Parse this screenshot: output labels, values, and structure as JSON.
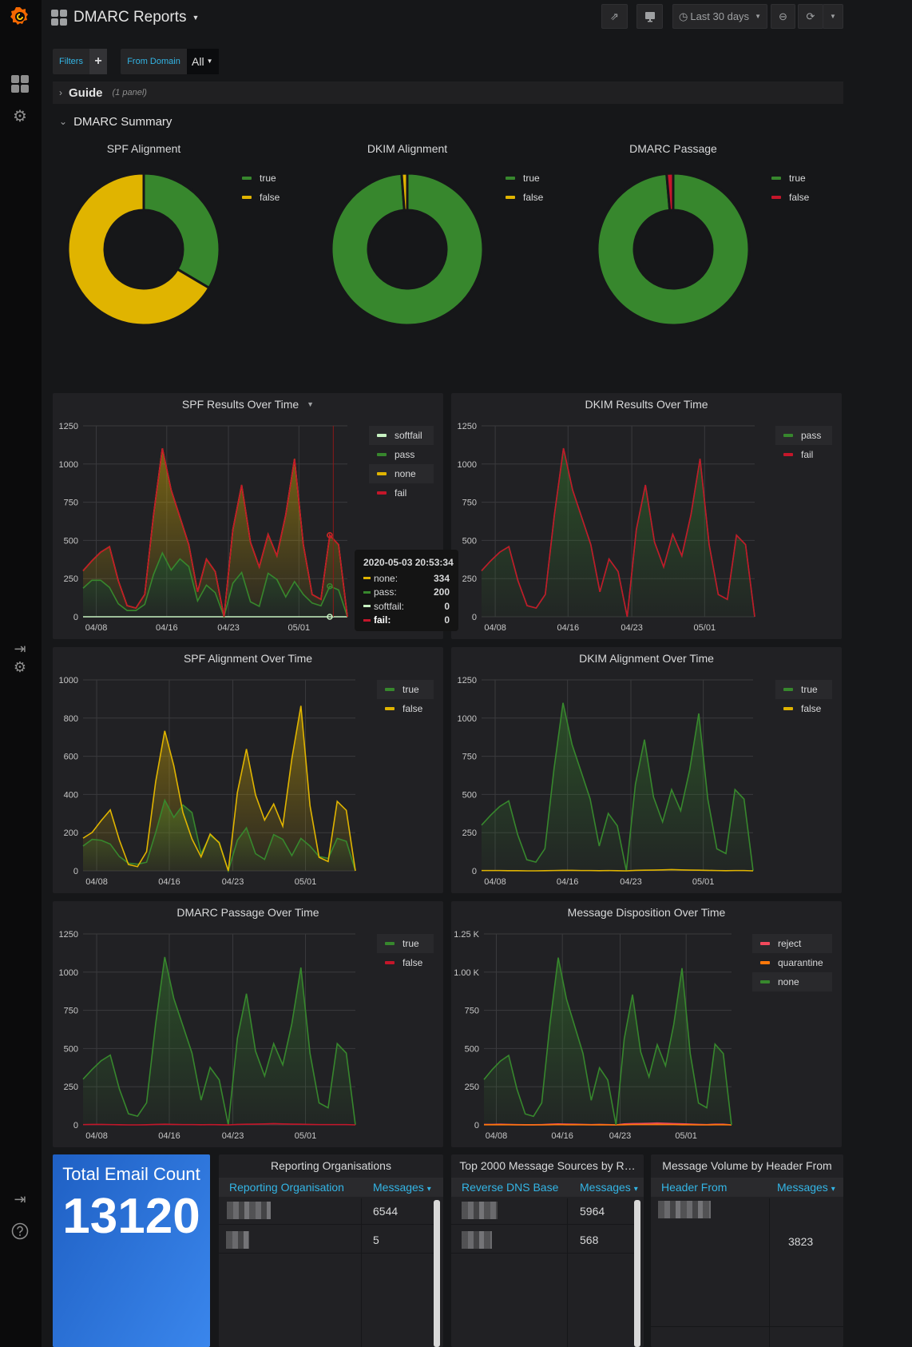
{
  "header": {
    "title": "DMARC Reports",
    "time_range": "Last 30 days"
  },
  "filters": {
    "filters_label": "Filters",
    "add_label": "+",
    "variable_label": "From Domain",
    "variable_value": "All"
  },
  "rows": {
    "guide": {
      "title": "Guide",
      "count": "(1 panel)"
    },
    "summary": {
      "title": "DMARC Summary"
    }
  },
  "colors": {
    "green": "#37872D",
    "yellow": "#E0B400",
    "red": "#C4162A",
    "softfail": "#C8F2C2",
    "orange": "#FF780A",
    "reject": "#F2495C",
    "link": "#33B5E5",
    "stat_bg": "#1F60C4"
  },
  "chart_data": [
    {
      "type": "pie",
      "title": "SPF Alignment",
      "legend": [
        {
          "label": "true",
          "color": "#37872D"
        },
        {
          "label": "false",
          "color": "#E0B400"
        }
      ],
      "values": [
        33.5,
        66.5
      ]
    },
    {
      "type": "pie",
      "title": "DKIM Alignment",
      "legend": [
        {
          "label": "true",
          "color": "#37872D"
        },
        {
          "label": "false",
          "color": "#E0B400"
        }
      ],
      "values": [
        98.8,
        1.2
      ]
    },
    {
      "type": "pie",
      "title": "DMARC Passage",
      "legend": [
        {
          "label": "true",
          "color": "#37872D"
        },
        {
          "label": "false",
          "color": "#C4162A"
        }
      ],
      "values": [
        98.6,
        1.4
      ]
    },
    {
      "type": "area",
      "title": "SPF Results Over Time",
      "stacked": true,
      "ylim": [
        0,
        1250
      ],
      "yticks": [
        "0",
        "250",
        "500",
        "750",
        "1000",
        "1250"
      ],
      "xticks": [
        "04/08",
        "04/16",
        "04/23",
        "05/01"
      ],
      "x": [
        "04/05",
        "04/06",
        "04/07",
        "04/08",
        "04/09",
        "04/10",
        "04/11",
        "04/12",
        "04/13",
        "04/14",
        "04/15",
        "04/16",
        "04/17",
        "04/18",
        "04/19",
        "04/20",
        "04/21",
        "04/22",
        "04/23",
        "04/24",
        "04/25",
        "04/26",
        "04/27",
        "04/28",
        "04/29",
        "04/30",
        "05/01",
        "05/02",
        "05/03",
        "05/04",
        "05/05"
      ],
      "series": [
        {
          "name": "softfail",
          "color": "#C8F2C2",
          "values": [
            0,
            0,
            0,
            0,
            0,
            0,
            0,
            0,
            0,
            0,
            0,
            0,
            0,
            0,
            0,
            0,
            0,
            0,
            0,
            0,
            0,
            0,
            0,
            0,
            0,
            0,
            0,
            0,
            0,
            0,
            0
          ]
        },
        {
          "name": "pass",
          "color": "#37872D",
          "values": [
            187,
            239,
            239,
            192,
            85,
            41,
            41,
            81,
            277,
            418,
            306,
            379,
            329,
            104,
            207,
            158,
            0,
            220,
            290,
            98,
            68,
            285,
            244,
            130,
            231,
            146,
            90,
            72,
            200,
            176,
            0
          ]
        },
        {
          "name": "none",
          "color": "#E0B400",
          "values": [
            114,
            127,
            184,
            267,
            151,
            32,
            16,
            65,
            390,
            685,
            524,
            272,
            143,
            59,
            171,
            138,
            0,
            350,
            573,
            390,
            258,
            255,
            155,
            537,
            803,
            326,
            56,
            42,
            334,
            296,
            0
          ]
        },
        {
          "name": "fail",
          "color": "#C4162A",
          "values": [
            0,
            0,
            0,
            0,
            0,
            0,
            0,
            0,
            0,
            0,
            0,
            0,
            0,
            0,
            0,
            0,
            0,
            0,
            0,
            0,
            0,
            0,
            0,
            0,
            0,
            0,
            0,
            0,
            0,
            0,
            0
          ]
        }
      ]
    },
    {
      "type": "area",
      "title": "DKIM Results Over Time",
      "stacked": true,
      "ylim": [
        0,
        1250
      ],
      "yticks": [
        "0",
        "250",
        "500",
        "750",
        "1000",
        "1250"
      ],
      "xticks": [
        "04/08",
        "04/16",
        "04/23",
        "05/01"
      ],
      "x": [
        "04/05",
        "04/06",
        "04/07",
        "04/08",
        "04/09",
        "04/10",
        "04/11",
        "04/12",
        "04/13",
        "04/14",
        "04/15",
        "04/16",
        "04/17",
        "04/18",
        "04/19",
        "04/20",
        "04/21",
        "04/22",
        "04/23",
        "04/24",
        "04/25",
        "04/26",
        "04/27",
        "04/28",
        "04/29",
        "04/30",
        "05/01",
        "05/02",
        "05/03",
        "05/04",
        "05/05"
      ],
      "series": [
        {
          "name": "pass",
          "color": "#37872D",
          "values": [
            301,
            366,
            423,
            459,
            236,
            73,
            57,
            146,
            667,
            1103,
            830,
            651,
            472,
            163,
            378,
            296,
            0,
            570,
            863,
            488,
            326,
            540,
            399,
            667,
            1034,
            472,
            146,
            114,
            534,
            472,
            0
          ]
        },
        {
          "name": "fail",
          "color": "#C4162A",
          "values": [
            0,
            0,
            0,
            0,
            0,
            0,
            0,
            0,
            0,
            0,
            0,
            0,
            0,
            0,
            0,
            0,
            0,
            0,
            0,
            0,
            0,
            0,
            0,
            0,
            0,
            0,
            0,
            0,
            0,
            0,
            0
          ]
        }
      ]
    },
    {
      "type": "area",
      "title": "SPF Alignment Over Time",
      "stacked": false,
      "ylim": [
        0,
        1000
      ],
      "yticks": [
        "0",
        "200",
        "400",
        "600",
        "800",
        "1000"
      ],
      "xticks": [
        "04/08",
        "04/16",
        "04/23",
        "05/01"
      ],
      "x": [
        "04/05",
        "04/06",
        "04/07",
        "04/08",
        "04/09",
        "04/10",
        "04/11",
        "04/12",
        "04/13",
        "04/14",
        "04/15",
        "04/16",
        "04/17",
        "04/18",
        "04/19",
        "04/20",
        "04/21",
        "04/22",
        "04/23",
        "04/24",
        "04/25",
        "04/26",
        "04/27",
        "04/28",
        "04/29",
        "04/30",
        "05/01",
        "05/02",
        "05/03",
        "05/04",
        "05/05"
      ],
      "series": [
        {
          "name": "true",
          "color": "#37872D",
          "values": [
            130,
            165,
            160,
            140,
            75,
            40,
            35,
            45,
            200,
            370,
            280,
            345,
            305,
            90,
            185,
            150,
            0,
            160,
            225,
            90,
            60,
            190,
            165,
            80,
            170,
            130,
            75,
            65,
            170,
            155,
            0
          ]
        },
        {
          "name": "false",
          "color": "#E0B400",
          "values": [
            171,
            201,
            263,
            319,
            161,
            33,
            22,
            101,
            467,
            733,
            550,
            306,
            167,
            73,
            193,
            146,
            0,
            410,
            638,
            398,
            266,
            350,
            234,
            587,
            864,
            342,
            71,
            49,
            364,
            317,
            0
          ]
        }
      ]
    },
    {
      "type": "area",
      "title": "DKIM Alignment Over Time",
      "stacked": false,
      "ylim": [
        0,
        1250
      ],
      "yticks": [
        "0",
        "250",
        "500",
        "750",
        "1000",
        "1250"
      ],
      "xticks": [
        "04/08",
        "04/16",
        "04/23",
        "05/01"
      ],
      "x": [
        "04/05",
        "04/06",
        "04/07",
        "04/08",
        "04/09",
        "04/10",
        "04/11",
        "04/12",
        "04/13",
        "04/14",
        "04/15",
        "04/16",
        "04/17",
        "04/18",
        "04/19",
        "04/20",
        "04/21",
        "04/22",
        "04/23",
        "04/24",
        "04/25",
        "04/26",
        "04/27",
        "04/28",
        "04/29",
        "04/30",
        "05/01",
        "05/02",
        "05/03",
        "05/04",
        "05/05"
      ],
      "series": [
        {
          "name": "true",
          "color": "#37872D",
          "values": [
            299,
            364,
            421,
            458,
            235,
            73,
            57,
            145,
            665,
            1100,
            827,
            649,
            470,
            162,
            376,
            295,
            0,
            567,
            859,
            483,
            320,
            532,
            393,
            662,
            1030,
            469,
            144,
            113,
            532,
            470,
            0
          ]
        },
        {
          "name": "false",
          "color": "#E0B400",
          "values": [
            2,
            2,
            2,
            1,
            1,
            0,
            0,
            1,
            2,
            3,
            3,
            2,
            2,
            1,
            2,
            1,
            0,
            3,
            4,
            5,
            6,
            8,
            6,
            5,
            4,
            3,
            2,
            1,
            2,
            2,
            0
          ]
        }
      ]
    },
    {
      "type": "area",
      "title": "DMARC Passage Over Time",
      "stacked": false,
      "ylim": [
        0,
        1250
      ],
      "yticks": [
        "0",
        "250",
        "500",
        "750",
        "1000",
        "1250"
      ],
      "xticks": [
        "04/08",
        "04/16",
        "04/23",
        "05/01"
      ],
      "x": [
        "04/05",
        "04/06",
        "04/07",
        "04/08",
        "04/09",
        "04/10",
        "04/11",
        "04/12",
        "04/13",
        "04/14",
        "04/15",
        "04/16",
        "04/17",
        "04/18",
        "04/19",
        "04/20",
        "04/21",
        "04/22",
        "04/23",
        "04/24",
        "04/25",
        "04/26",
        "04/27",
        "04/28",
        "04/29",
        "04/30",
        "05/01",
        "05/02",
        "05/03",
        "05/04",
        "05/05"
      ],
      "series": [
        {
          "name": "true",
          "color": "#37872D",
          "values": [
            299,
            363,
            420,
            457,
            235,
            73,
            57,
            145,
            664,
            1099,
            827,
            649,
            470,
            162,
            376,
            295,
            0,
            567,
            859,
            483,
            320,
            532,
            393,
            662,
            1030,
            469,
            144,
            112,
            532,
            470,
            0
          ]
        },
        {
          "name": "false",
          "color": "#C4162A",
          "values": [
            2,
            3,
            3,
            2,
            1,
            0,
            0,
            1,
            3,
            4,
            3,
            2,
            2,
            1,
            2,
            1,
            0,
            3,
            4,
            5,
            6,
            8,
            6,
            5,
            4,
            3,
            2,
            2,
            2,
            2,
            0
          ]
        }
      ]
    },
    {
      "type": "area",
      "title": "Message Disposition Over Time",
      "stacked": false,
      "ylim": [
        0,
        1250
      ],
      "yticks": [
        "0",
        "250",
        "500",
        "750",
        "1.00 K",
        "1.25 K"
      ],
      "xticks": [
        "04/08",
        "04/16",
        "04/23",
        "05/01"
      ],
      "x": [
        "04/05",
        "04/06",
        "04/07",
        "04/08",
        "04/09",
        "04/10",
        "04/11",
        "04/12",
        "04/13",
        "04/14",
        "04/15",
        "04/16",
        "04/17",
        "04/18",
        "04/19",
        "04/20",
        "04/21",
        "04/22",
        "04/23",
        "04/24",
        "04/25",
        "04/26",
        "04/27",
        "04/28",
        "04/29",
        "04/30",
        "05/01",
        "05/02",
        "05/03",
        "05/04",
        "05/05"
      ],
      "series": [
        {
          "name": "reject",
          "color": "#F2495C",
          "values": [
            3,
            3,
            4,
            3,
            2,
            1,
            1,
            2,
            4,
            6,
            5,
            4,
            3,
            2,
            3,
            2,
            0,
            6,
            8,
            9,
            10,
            12,
            10,
            8,
            7,
            5,
            3,
            2,
            4,
            4,
            0
          ]
        },
        {
          "name": "quarantine",
          "color": "#FF780A",
          "values": [
            1,
            1,
            1,
            1,
            0,
            0,
            0,
            0,
            1,
            2,
            1,
            1,
            1,
            0,
            1,
            0,
            0,
            1,
            2,
            2,
            2,
            3,
            2,
            2,
            1,
            1,
            0,
            0,
            1,
            1,
            0
          ]
        },
        {
          "name": "none",
          "color": "#37872D",
          "values": [
            297,
            362,
            418,
            455,
            234,
            72,
            56,
            144,
            662,
            1095,
            824,
            646,
            468,
            161,
            374,
            294,
            0,
            563,
            853,
            477,
            314,
            525,
            387,
            657,
            1026,
            466,
            143,
            112,
            529,
            467,
            0
          ]
        }
      ]
    }
  ],
  "tooltip": {
    "time": "2020-05-03 20:53:34",
    "rows": [
      {
        "name": "none:",
        "value": "334",
        "color": "#E0B400"
      },
      {
        "name": "pass:",
        "value": "200",
        "color": "#37872D"
      },
      {
        "name": "softfail:",
        "value": "0",
        "color": "#C8F2C2"
      },
      {
        "name": "fail:",
        "value": "0",
        "color": "#C4162A"
      }
    ]
  },
  "stat": {
    "title": "Total Email Count",
    "value": "13120"
  },
  "tables": [
    {
      "title": "Reporting Organisations",
      "col1": "Reporting Organisation",
      "col2": "Messages",
      "rows": [
        {
          "value": "6544"
        },
        {
          "value": "5"
        }
      ]
    },
    {
      "title": "Top 2000 Message Sources by R…",
      "col1": "Reverse DNS Base",
      "col2": "Messages",
      "rows": [
        {
          "value": "5964"
        },
        {
          "value": "568"
        }
      ]
    },
    {
      "title": "Message Volume by Header From",
      "col1": "Header From",
      "col2": "Messages",
      "rows": [
        {
          "value": "3823"
        }
      ]
    }
  ],
  "sort_icon": "▾"
}
